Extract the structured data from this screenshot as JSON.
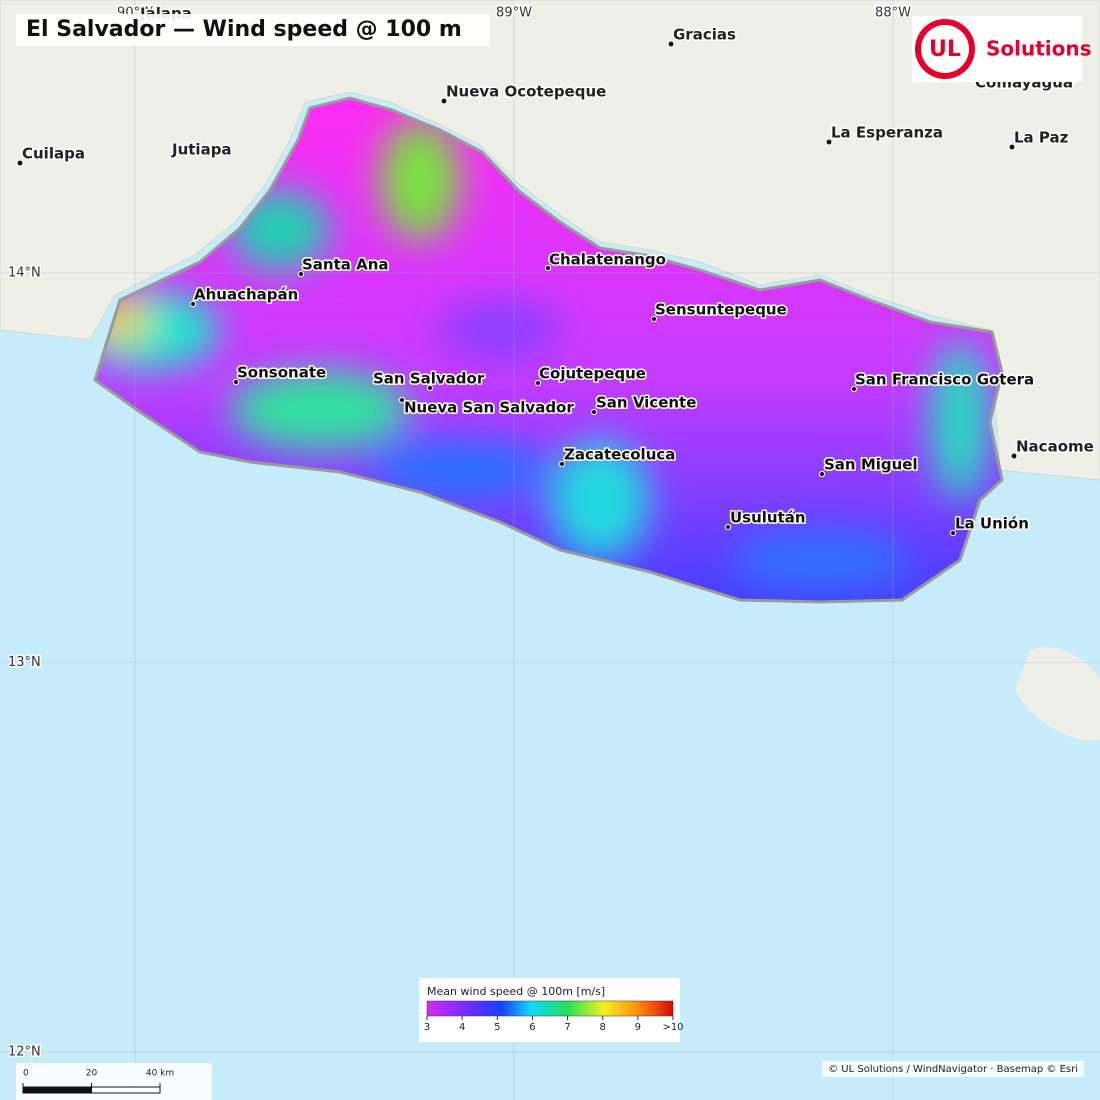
{
  "title": "El Salvador — Wind speed @ 100 m",
  "logo": {
    "mark": "UL",
    "text": "Solutions"
  },
  "graticule": {
    "lon": [
      {
        "value": -90,
        "label": "90°W"
      },
      {
        "value": -89,
        "label": "89°W"
      },
      {
        "value": -88,
        "label": "88°W"
      }
    ],
    "lat": [
      {
        "value": 14,
        "label": "14°N"
      },
      {
        "value": 13,
        "label": "13°N"
      },
      {
        "value": 12,
        "label": "12°N"
      }
    ]
  },
  "cities": [
    "Santa Ana",
    "Ahuachapán",
    "Sonsonate",
    "San Salvador",
    "Nueva San Salvador",
    "Cojutepeque",
    "San Vicente",
    "Zacatecoluca",
    "Chalatenango",
    "Sensuntepeque",
    "San Francisco Gotera",
    "San Miguel",
    "Usulután",
    "La Unión"
  ],
  "basemap_places": [
    "Jalapa",
    "Gracias",
    "Nueva Ocotepeque",
    "Comayagua",
    "La Esperanza",
    "La Paz",
    "Cuilapa",
    "Jutiapa",
    "Nacaome"
  ],
  "legend": {
    "title": "Mean wind speed @ 100m  [m/s]",
    "range": [
      3,
      10
    ],
    "ticks": [
      3,
      4,
      5,
      6,
      7,
      8,
      9,
      {
        "value": 10,
        "label": ">10"
      }
    ]
  },
  "scale_bar": {
    "range": [
      0,
      40
    ],
    "ticks": [
      0,
      20,
      {
        "value": 40,
        "label": "40 km"
      }
    ]
  },
  "attribution": "© UL Solutions / WindNavigator · Basemap © Esri"
}
